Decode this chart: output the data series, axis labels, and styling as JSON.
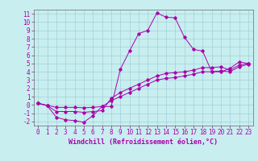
{
  "title": "",
  "xlabel": "Windchill (Refroidissement éolien,°C)",
  "xlim": [
    -0.5,
    23.5
  ],
  "ylim": [
    -2.5,
    11.5
  ],
  "xticks": [
    0,
    1,
    2,
    3,
    4,
    5,
    6,
    7,
    8,
    9,
    10,
    11,
    12,
    13,
    14,
    15,
    16,
    17,
    18,
    19,
    20,
    21,
    22,
    23
  ],
  "yticks": [
    -2,
    -1,
    0,
    1,
    2,
    3,
    4,
    5,
    6,
    7,
    8,
    9,
    10,
    11
  ],
  "bg_color": "#c8eef0",
  "line_color": "#aa00aa",
  "grid_color": "#a0d0d8",
  "line1_x": [
    0,
    1,
    2,
    3,
    4,
    5,
    6,
    7,
    8,
    9,
    10,
    11,
    12,
    13,
    14,
    15,
    16,
    17,
    18,
    19,
    20,
    21,
    22,
    23
  ],
  "line1_y": [
    0.2,
    -0.1,
    -1.5,
    -1.8,
    -1.9,
    -2.1,
    -1.3,
    -0.2,
    -0.2,
    4.3,
    6.5,
    8.6,
    9.0,
    11.1,
    10.6,
    10.5,
    8.2,
    6.7,
    6.5,
    4.0,
    4.0,
    4.4,
    5.2,
    5.0
  ],
  "line2_x": [
    0,
    1,
    2,
    3,
    4,
    5,
    6,
    7,
    8,
    9,
    10,
    11,
    12,
    13,
    14,
    15,
    16,
    17,
    18,
    19,
    20,
    21,
    22,
    23
  ],
  "line2_y": [
    0.2,
    -0.1,
    -0.8,
    -0.8,
    -0.8,
    -0.9,
    -0.8,
    -0.7,
    0.8,
    1.5,
    2.0,
    2.5,
    3.0,
    3.5,
    3.8,
    3.9,
    4.0,
    4.2,
    4.5,
    4.5,
    4.6,
    4.2,
    4.8,
    5.0
  ],
  "line3_x": [
    0,
    1,
    2,
    3,
    4,
    5,
    6,
    7,
    8,
    9,
    10,
    11,
    12,
    13,
    14,
    15,
    16,
    17,
    18,
    19,
    20,
    21,
    22,
    23
  ],
  "line3_y": [
    0.2,
    -0.05,
    -0.3,
    -0.3,
    -0.3,
    -0.35,
    -0.3,
    -0.2,
    0.5,
    1.0,
    1.5,
    2.0,
    2.5,
    3.0,
    3.2,
    3.3,
    3.5,
    3.7,
    4.0,
    4.0,
    4.1,
    4.0,
    4.6,
    4.9
  ],
  "tick_fontsize": 5.5,
  "xlabel_fontsize": 6.0
}
